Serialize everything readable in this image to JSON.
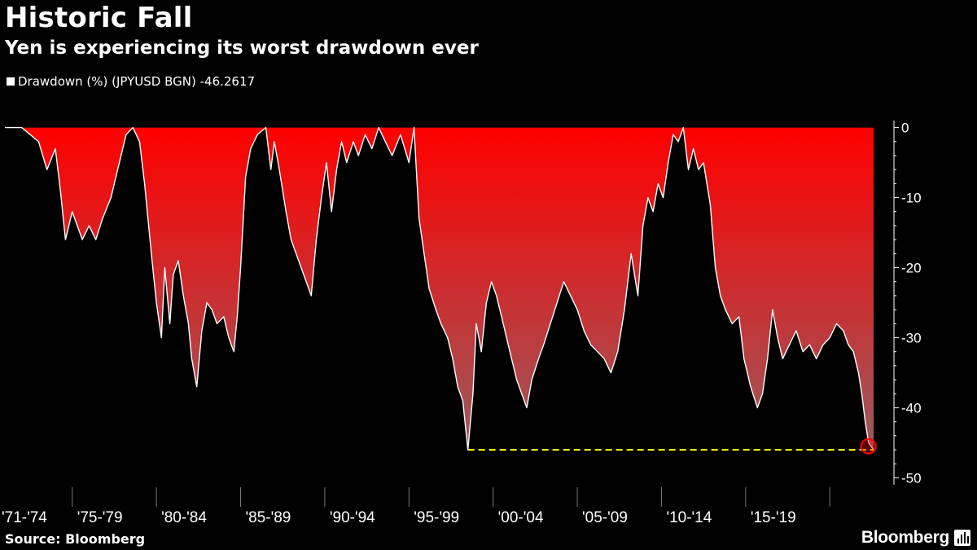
{
  "header": {
    "title": "Historic Fall",
    "subtitle": "Yen is experiencing its worst drawdown ever"
  },
  "legend": {
    "label": "Drawdown (%) (JPYUSD BGN) -46.2617"
  },
  "footer": {
    "source": "Source: Bloomberg",
    "brand": "Bloomberg"
  },
  "colors": {
    "fill_top": "#ff0000",
    "fill_bottom": "#9a5a5e",
    "line": "#ffffff",
    "reference_line": "#ffff00",
    "marker": "#ff0000",
    "background": "#000000"
  },
  "chart_data": {
    "type": "area",
    "y_axis_position": "right",
    "ylim": [
      -51,
      1
    ],
    "yticks": [
      0,
      -10,
      -20,
      -30,
      -40,
      -50
    ],
    "x_range": [
      1971.0,
      2022.6
    ],
    "x_tick_labels": [
      "'71-'74",
      "'75-'79",
      "'80-'84",
      "'85-'89",
      "'90-'94",
      "'95-'99",
      "'00-'04",
      "'05-'09",
      "'10-'14",
      "'15-'19"
    ],
    "x_tick_starts": [
      1971,
      1975,
      1980,
      1985,
      1990,
      1995,
      2000,
      2005,
      2010,
      2015,
      2020
    ],
    "reference_line": {
      "value": -46.0,
      "x_start": 1998.5,
      "x_end": 2022.6
    },
    "highlight_point": {
      "x": 2022.3,
      "y": -45.5
    },
    "series": [
      {
        "values": [
          [
            1971.0,
            0
          ],
          [
            1972.0,
            0
          ],
          [
            1973.0,
            -2
          ],
          [
            1973.5,
            -6
          ],
          [
            1974.0,
            -3
          ],
          [
            1974.3,
            -9
          ],
          [
            1974.6,
            -16
          ],
          [
            1975.0,
            -12
          ],
          [
            1975.3,
            -14
          ],
          [
            1975.6,
            -16
          ],
          [
            1976.0,
            -14
          ],
          [
            1976.4,
            -16
          ],
          [
            1976.8,
            -13
          ],
          [
            1977.3,
            -10
          ],
          [
            1977.8,
            -5
          ],
          [
            1978.2,
            -1
          ],
          [
            1978.6,
            0
          ],
          [
            1979.0,
            -2
          ],
          [
            1979.3,
            -8
          ],
          [
            1979.7,
            -18
          ],
          [
            1980.0,
            -25
          ],
          [
            1980.3,
            -30
          ],
          [
            1980.5,
            -20
          ],
          [
            1980.8,
            -28
          ],
          [
            1981.0,
            -21
          ],
          [
            1981.3,
            -19
          ],
          [
            1981.6,
            -24
          ],
          [
            1981.9,
            -28
          ],
          [
            1982.1,
            -33
          ],
          [
            1982.4,
            -37
          ],
          [
            1982.7,
            -29
          ],
          [
            1983.0,
            -25
          ],
          [
            1983.3,
            -26
          ],
          [
            1983.6,
            -28
          ],
          [
            1984.0,
            -27
          ],
          [
            1984.3,
            -30
          ],
          [
            1984.6,
            -32
          ],
          [
            1984.8,
            -27
          ],
          [
            1985.0,
            -20
          ],
          [
            1985.3,
            -7
          ],
          [
            1985.6,
            -3
          ],
          [
            1986.0,
            -1
          ],
          [
            1986.5,
            0
          ],
          [
            1986.8,
            -6
          ],
          [
            1987.0,
            -2
          ],
          [
            1987.3,
            -6
          ],
          [
            1987.7,
            -12
          ],
          [
            1988.0,
            -16
          ],
          [
            1988.3,
            -18
          ],
          [
            1988.6,
            -20
          ],
          [
            1988.9,
            -22
          ],
          [
            1989.2,
            -24
          ],
          [
            1989.5,
            -16
          ],
          [
            1989.8,
            -10
          ],
          [
            1990.1,
            -5
          ],
          [
            1990.4,
            -12
          ],
          [
            1990.7,
            -6
          ],
          [
            1991.0,
            -2
          ],
          [
            1991.3,
            -5
          ],
          [
            1991.7,
            -2
          ],
          [
            1992.0,
            -4
          ],
          [
            1992.4,
            -1
          ],
          [
            1992.8,
            -3
          ],
          [
            1993.2,
            0
          ],
          [
            1993.6,
            -2
          ],
          [
            1994.0,
            -4
          ],
          [
            1994.5,
            -1
          ],
          [
            1995.0,
            -5
          ],
          [
            1995.3,
            0
          ],
          [
            1995.6,
            -13
          ],
          [
            1995.9,
            -18
          ],
          [
            1996.2,
            -23
          ],
          [
            1996.6,
            -26
          ],
          [
            1996.9,
            -28
          ],
          [
            1997.3,
            -30
          ],
          [
            1997.6,
            -33
          ],
          [
            1997.9,
            -37
          ],
          [
            1998.2,
            -39
          ],
          [
            1998.5,
            -46
          ],
          [
            1998.8,
            -38
          ],
          [
            1999.0,
            -28
          ],
          [
            1999.3,
            -32
          ],
          [
            1999.6,
            -25
          ],
          [
            1999.9,
            -22
          ],
          [
            2000.2,
            -24
          ],
          [
            2000.6,
            -28
          ],
          [
            2001.0,
            -32
          ],
          [
            2001.4,
            -36
          ],
          [
            2001.7,
            -38
          ],
          [
            2002.0,
            -40
          ],
          [
            2002.3,
            -36
          ],
          [
            2002.7,
            -33
          ],
          [
            2003.0,
            -31
          ],
          [
            2003.4,
            -28
          ],
          [
            2003.8,
            -25
          ],
          [
            2004.2,
            -22
          ],
          [
            2004.6,
            -24
          ],
          [
            2005.0,
            -26
          ],
          [
            2005.4,
            -29
          ],
          [
            2005.8,
            -31
          ],
          [
            2006.2,
            -32
          ],
          [
            2006.6,
            -33
          ],
          [
            2007.0,
            -35
          ],
          [
            2007.4,
            -32
          ],
          [
            2007.8,
            -26
          ],
          [
            2008.2,
            -18
          ],
          [
            2008.6,
            -24
          ],
          [
            2008.9,
            -14
          ],
          [
            2009.2,
            -10
          ],
          [
            2009.5,
            -12
          ],
          [
            2009.8,
            -8
          ],
          [
            2010.1,
            -10
          ],
          [
            2010.4,
            -5
          ],
          [
            2010.7,
            -1
          ],
          [
            2011.0,
            -2
          ],
          [
            2011.3,
            0
          ],
          [
            2011.6,
            -6
          ],
          [
            2011.9,
            -3
          ],
          [
            2012.2,
            -6
          ],
          [
            2012.5,
            -5
          ],
          [
            2012.9,
            -11
          ],
          [
            2013.2,
            -20
          ],
          [
            2013.5,
            -24
          ],
          [
            2013.8,
            -26
          ],
          [
            2014.2,
            -28
          ],
          [
            2014.6,
            -27
          ],
          [
            2014.9,
            -33
          ],
          [
            2015.3,
            -37
          ],
          [
            2015.7,
            -40
          ],
          [
            2016.0,
            -38
          ],
          [
            2016.3,
            -33
          ],
          [
            2016.6,
            -26
          ],
          [
            2016.9,
            -30
          ],
          [
            2017.2,
            -33
          ],
          [
            2017.6,
            -31
          ],
          [
            2018.0,
            -29
          ],
          [
            2018.4,
            -32
          ],
          [
            2018.8,
            -31
          ],
          [
            2019.2,
            -33
          ],
          [
            2019.6,
            -31
          ],
          [
            2020.0,
            -30
          ],
          [
            2020.4,
            -28
          ],
          [
            2020.8,
            -29
          ],
          [
            2021.1,
            -31
          ],
          [
            2021.4,
            -32
          ],
          [
            2021.7,
            -35
          ],
          [
            2021.9,
            -38
          ],
          [
            2022.1,
            -42
          ],
          [
            2022.3,
            -45
          ],
          [
            2022.6,
            -46
          ]
        ]
      }
    ]
  }
}
